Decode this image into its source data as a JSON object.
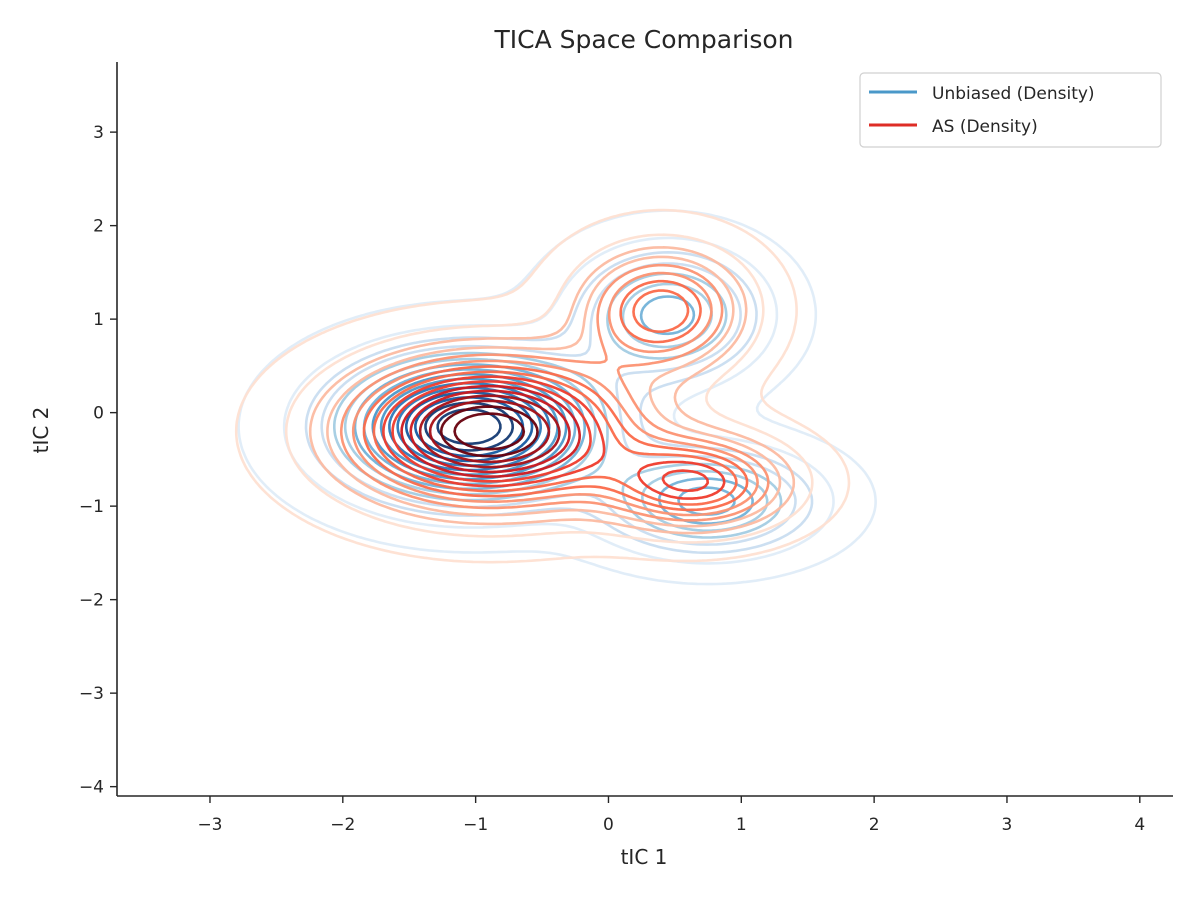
{
  "chart_data": {
    "type": "contour",
    "title": "TICA Space Comparison",
    "xlabel": "tIC 1",
    "ylabel": "tIC 2",
    "xlim": [
      -3.7,
      4.25
    ],
    "ylim": [
      -4.1,
      3.75
    ],
    "xticks": [
      -3,
      -2,
      -1,
      0,
      1,
      2,
      3,
      4
    ],
    "yticks": [
      -4,
      -3,
      -2,
      -1,
      0,
      1,
      2,
      3
    ],
    "xtick_labels": [
      "−3",
      "−2",
      "−1",
      "0",
      "1",
      "2",
      "3",
      "4"
    ],
    "ytick_labels": [
      "−4",
      "−3",
      "−2",
      "−1",
      "0",
      "1",
      "2",
      "3"
    ],
    "grid": false,
    "legend_position": "top-right",
    "series": [
      {
        "name": "Unbiased (Density)",
        "legend_color": "#4a98c9",
        "colormap": [
          "#deebf7",
          "#c6dbef",
          "#9ecae1",
          "#6baed6",
          "#4292c6",
          "#2171b5",
          "#08519c",
          "#08306b"
        ],
        "modes": [
          {
            "x": -1.05,
            "y": -0.15,
            "sx": 0.62,
            "sy": 0.48,
            "w": 1.0
          },
          {
            "x": 0.45,
            "y": 1.05,
            "sx": 0.45,
            "sy": 0.45,
            "w": 0.42
          },
          {
            "x": 0.75,
            "y": -0.95,
            "sx": 0.5,
            "sy": 0.35,
            "w": 0.48
          }
        ]
      },
      {
        "name": "AS (Density)",
        "legend_color": "#de2d26",
        "colormap": [
          "#fee0d2",
          "#fcbba1",
          "#fc9272",
          "#fb6a4a",
          "#ef3b2c",
          "#cb181d",
          "#a50f15",
          "#67000d"
        ],
        "modes": [
          {
            "x": -0.9,
            "y": -0.2,
            "sx": 0.68,
            "sy": 0.5,
            "w": 1.0
          },
          {
            "x": 0.4,
            "y": 1.1,
            "sx": 0.4,
            "sy": 0.42,
            "w": 0.5
          },
          {
            "x": 0.65,
            "y": -0.75,
            "sx": 0.45,
            "sy": 0.32,
            "w": 0.55
          }
        ]
      }
    ]
  }
}
